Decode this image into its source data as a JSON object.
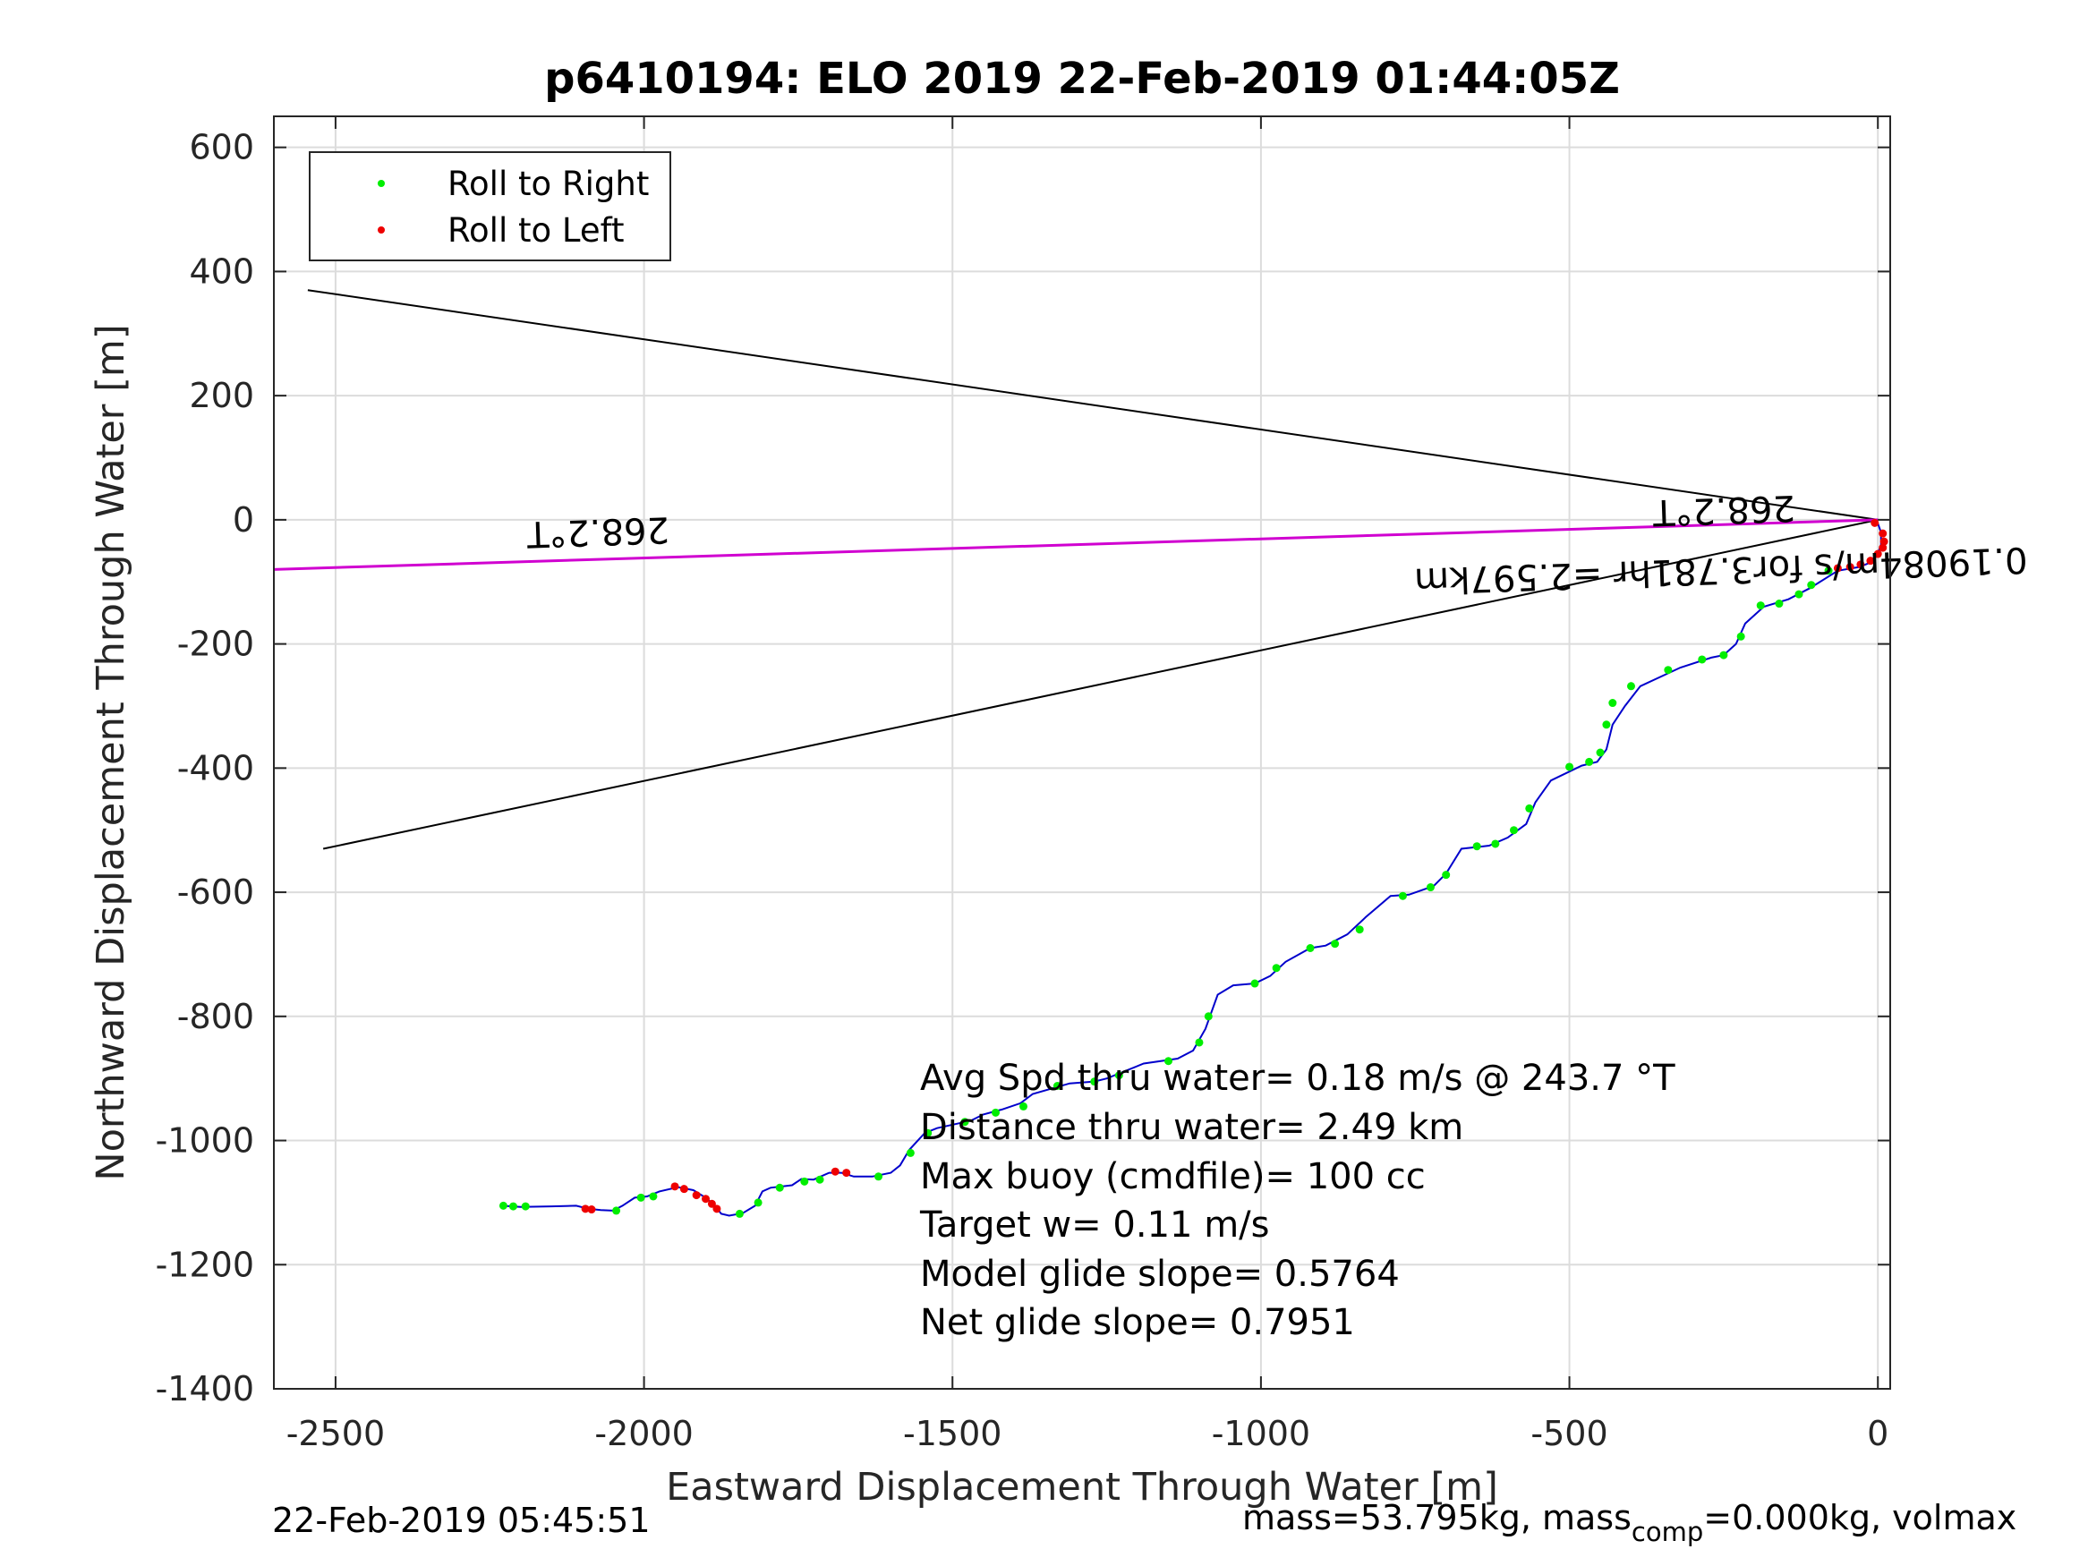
{
  "chart_data": {
    "type": "line",
    "title": "p6410194: ELO 2019 22-Feb-2019 01:44:05Z",
    "xlabel": "Eastward Displacement Through Water [m]",
    "ylabel": "Northward Displacement Through Water [m]",
    "xlim": [
      -2600,
      20
    ],
    "ylim": [
      -1400,
      650
    ],
    "x_ticks": [
      -2500,
      -2000,
      -1500,
      -1000,
      -500,
      0
    ],
    "y_ticks": [
      600,
      400,
      200,
      0,
      -200,
      -400,
      -600,
      -800,
      -1000,
      -1200,
      -1400
    ],
    "grid": true,
    "legend_position": "top-left",
    "legend": [
      {
        "label": "Roll to Right",
        "color": "#00ee00"
      },
      {
        "label": "Roll to Left",
        "color": "#ee0000"
      }
    ],
    "track": {
      "color": "#0000cc",
      "x": [
        -2230,
        -2200,
        -2150,
        -2110,
        -2090,
        -2070,
        -2050,
        -2035,
        -2015,
        -1995,
        -1975,
        -1945,
        -1920,
        -1900,
        -1885,
        -1875,
        -1862,
        -1840,
        -1820,
        -1808,
        -1795,
        -1760,
        -1745,
        -1725,
        -1700,
        -1680,
        -1660,
        -1630,
        -1600,
        -1585,
        -1570,
        -1545,
        -1525,
        -1470,
        -1450,
        -1420,
        -1390,
        -1370,
        -1310,
        -1270,
        -1250,
        -1190,
        -1135,
        -1110,
        -1090,
        -1070,
        -1045,
        -1010,
        -985,
        -960,
        -920,
        -895,
        -860,
        -830,
        -790,
        -760,
        -720,
        -700,
        -675,
        -630,
        -600,
        -570,
        -555,
        -530,
        -480,
        -455,
        -440,
        -430,
        -410,
        -385,
        -320,
        -270,
        -250,
        -230,
        -215,
        -185,
        -145,
        -110,
        -65,
        -30,
        -10,
        0,
        5,
        5,
        -2
      ],
      "y": [
        -1105,
        -1107,
        -1106,
        -1105,
        -1110,
        -1112,
        -1113,
        -1105,
        -1092,
        -1090,
        -1082,
        -1075,
        -1080,
        -1092,
        -1105,
        -1118,
        -1121,
        -1117,
        -1105,
        -1082,
        -1076,
        -1072,
        -1062,
        -1063,
        -1052,
        -1052,
        -1058,
        -1058,
        -1052,
        -1040,
        -1015,
        -988,
        -980,
        -968,
        -958,
        -950,
        -940,
        -925,
        -908,
        -905,
        -900,
        -876,
        -868,
        -855,
        -820,
        -765,
        -750,
        -747,
        -735,
        -712,
        -690,
        -686,
        -668,
        -640,
        -606,
        -604,
        -590,
        -570,
        -530,
        -525,
        -512,
        -490,
        -455,
        -420,
        -396,
        -390,
        -370,
        -330,
        -300,
        -268,
        -238,
        -222,
        -218,
        -200,
        -167,
        -140,
        -128,
        -110,
        -82,
        -76,
        -68,
        -55,
        -40,
        -20,
        0
      ]
    },
    "roll_right_points": [
      [
        -2228,
        -1105
      ],
      [
        -2212,
        -1106
      ],
      [
        -2192,
        -1106
      ],
      [
        -2045,
        -1113
      ],
      [
        -2005,
        -1092
      ],
      [
        -1985,
        -1090
      ],
      [
        -1845,
        -1118
      ],
      [
        -1815,
        -1100
      ],
      [
        -1780,
        -1076
      ],
      [
        -1740,
        -1066
      ],
      [
        -1715,
        -1063
      ],
      [
        -1620,
        -1058
      ],
      [
        -1568,
        -1020
      ],
      [
        -1540,
        -988
      ],
      [
        -1480,
        -970
      ],
      [
        -1430,
        -955
      ],
      [
        -1385,
        -945
      ],
      [
        -1330,
        -912
      ],
      [
        -1270,
        -905
      ],
      [
        -1230,
        -895
      ],
      [
        -1150,
        -872
      ],
      [
        -1100,
        -842
      ],
      [
        -1085,
        -800
      ],
      [
        -1010,
        -747
      ],
      [
        -975,
        -722
      ],
      [
        -920,
        -690
      ],
      [
        -880,
        -683
      ],
      [
        -840,
        -660
      ],
      [
        -770,
        -606
      ],
      [
        -725,
        -592
      ],
      [
        -700,
        -572
      ],
      [
        -650,
        -526
      ],
      [
        -620,
        -522
      ],
      [
        -590,
        -500
      ],
      [
        -565,
        -465
      ],
      [
        -500,
        -398
      ],
      [
        -468,
        -390
      ],
      [
        -450,
        -375
      ],
      [
        -440,
        -330
      ],
      [
        -430,
        -295
      ],
      [
        -400,
        -268
      ],
      [
        -340,
        -242
      ],
      [
        -285,
        -225
      ],
      [
        -250,
        -218
      ],
      [
        -222,
        -188
      ],
      [
        -190,
        -138
      ],
      [
        -160,
        -135
      ],
      [
        -128,
        -120
      ],
      [
        -108,
        -105
      ],
      [
        -80,
        -82
      ]
    ],
    "roll_left_points": [
      [
        -2095,
        -1110
      ],
      [
        -2085,
        -1111
      ],
      [
        -1950,
        -1074
      ],
      [
        -1935,
        -1078
      ],
      [
        -1915,
        -1088
      ],
      [
        -1900,
        -1094
      ],
      [
        -1890,
        -1102
      ],
      [
        -1882,
        -1110
      ],
      [
        -1690,
        -1050
      ],
      [
        -1672,
        -1052
      ],
      [
        -65,
        -78
      ],
      [
        -45,
        -76
      ],
      [
        -28,
        -72
      ],
      [
        -12,
        -66
      ],
      [
        0,
        -55
      ],
      [
        8,
        -45
      ],
      [
        10,
        -35
      ],
      [
        8,
        -22
      ],
      [
        -5,
        -5
      ]
    ],
    "heading_lines": {
      "color": "#000000",
      "fan": [
        {
          "from": [
            0,
            0
          ],
          "to": [
            -2545,
            370
          ]
        },
        {
          "from": [
            0,
            0
          ],
          "to": [
            -2520,
            -530
          ]
        }
      ],
      "mean": {
        "from": [
          0,
          0
        ],
        "to": [
          -2600,
          -80
        ],
        "color": "#d000d0"
      }
    },
    "heading_annotations": [
      {
        "text": "268.2°T",
        "x": -2075,
        "y": 0,
        "rotated": true
      },
      {
        "text": "268.2°T",
        "x": -250,
        "y": 35,
        "rotated": true
      },
      {
        "text": "0.19084m/s for3.781hr =2.597km",
        "x": -255,
        "y": -62,
        "rotated": true
      }
    ],
    "stats": [
      "Avg Spd thru water=  0.18 m/s @ 243.7 °T",
      "Distance thru water=  2.49 km",
      "Max buoy (cmdfile)= 100 cc",
      "Target w= 0.11 m/s",
      "Model glide slope= 0.5764",
      "Net glide slope= 0.7951"
    ]
  },
  "footer": {
    "timestamp": "22-Feb-2019 05:45:51",
    "mass_prefix": "mass=53.795kg, mass",
    "mass_sub": "comp",
    "mass_suffix": "=0.000kg, volmax"
  }
}
